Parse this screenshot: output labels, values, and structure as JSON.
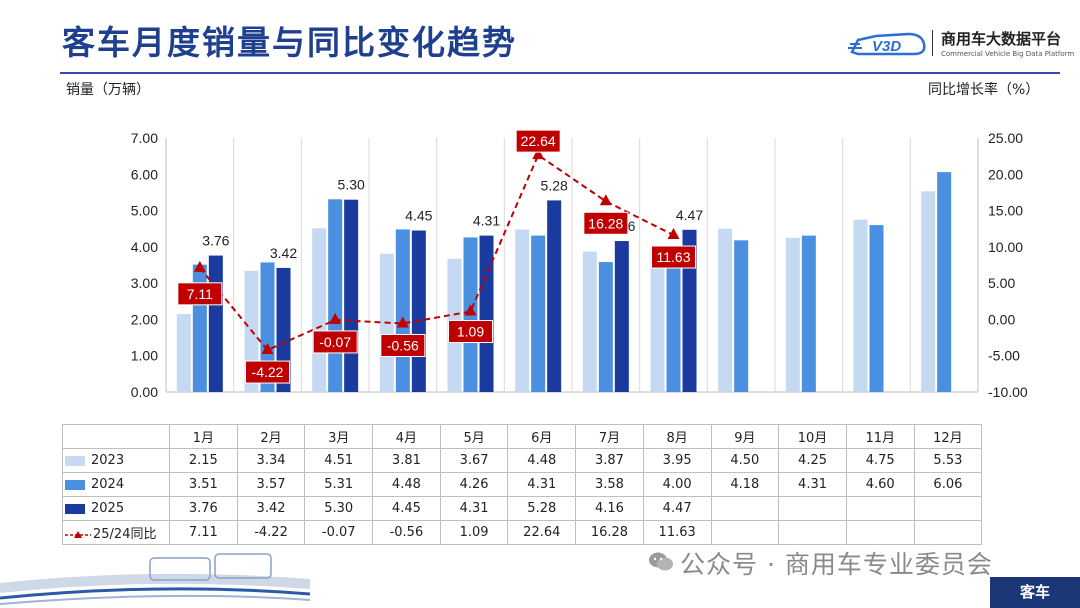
{
  "title": "客车月度销量与同比变化趋势",
  "brand": {
    "name_cn": "商用车大数据平台",
    "name_en": "Commercial Vehicle Big Data Platform",
    "logo_text": "V3D"
  },
  "footer": {
    "watermark": "公众号 · 商用车专业委员会",
    "tab_label": "客车"
  },
  "colors": {
    "y2023": "#c6d9f3",
    "y2024": "#4a8fe0",
    "y2025": "#1a3aa0",
    "yoy": "#c00000",
    "title": "#1f3f8f"
  },
  "chart_data": {
    "type": "bar",
    "ylabel_left": "销量（万辆）",
    "ylabel_right": "同比增长率（%）",
    "categories": [
      "1月",
      "2月",
      "3月",
      "4月",
      "5月",
      "6月",
      "7月",
      "8月",
      "9月",
      "10月",
      "11月",
      "12月"
    ],
    "ylim_left": [
      0,
      7
    ],
    "yticks_left": [
      "0.00",
      "1.00",
      "2.00",
      "3.00",
      "4.00",
      "5.00",
      "6.00",
      "7.00"
    ],
    "ylim_right": [
      -10,
      25
    ],
    "yticks_right": [
      "-10.00",
      "-5.00",
      "0.00",
      "5.00",
      "10.00",
      "15.00",
      "20.00",
      "25.00"
    ],
    "series": [
      {
        "name": "2023",
        "values": [
          2.15,
          3.34,
          4.51,
          3.81,
          3.67,
          4.48,
          3.87,
          3.95,
          4.5,
          4.25,
          4.75,
          5.53
        ],
        "display": [
          "2.15",
          "3.34",
          "4.51",
          "3.81",
          "3.67",
          "4.48",
          "3.87",
          "3.95",
          "4.50",
          "4.25",
          "4.75",
          "5.53"
        ]
      },
      {
        "name": "2024",
        "values": [
          3.51,
          3.57,
          5.31,
          4.48,
          4.26,
          4.31,
          3.58,
          4.0,
          4.18,
          4.31,
          4.6,
          6.06
        ],
        "display": [
          "3.51",
          "3.57",
          "5.31",
          "4.48",
          "4.26",
          "4.31",
          "3.58",
          "4.00",
          "4.18",
          "4.31",
          "4.60",
          "6.06"
        ]
      },
      {
        "name": "2025",
        "values": [
          3.76,
          3.42,
          5.3,
          4.45,
          4.31,
          5.28,
          4.16,
          4.47,
          null,
          null,
          null,
          null
        ],
        "display": [
          "3.76",
          "3.42",
          "5.30",
          "4.45",
          "4.31",
          "5.28",
          "4.16",
          "4.47",
          "",
          "",
          "",
          ""
        ]
      }
    ],
    "yoy": {
      "name": "25/24同比",
      "values": [
        7.11,
        -4.22,
        -0.07,
        -0.56,
        1.09,
        22.64,
        16.28,
        11.63,
        null,
        null,
        null,
        null
      ],
      "display": [
        "7.11",
        "-4.22",
        "-0.07",
        "-0.56",
        "1.09",
        "22.64",
        "16.28",
        "11.63",
        "",
        "",
        "",
        ""
      ]
    },
    "grid": "vertical",
    "legend": "table"
  }
}
